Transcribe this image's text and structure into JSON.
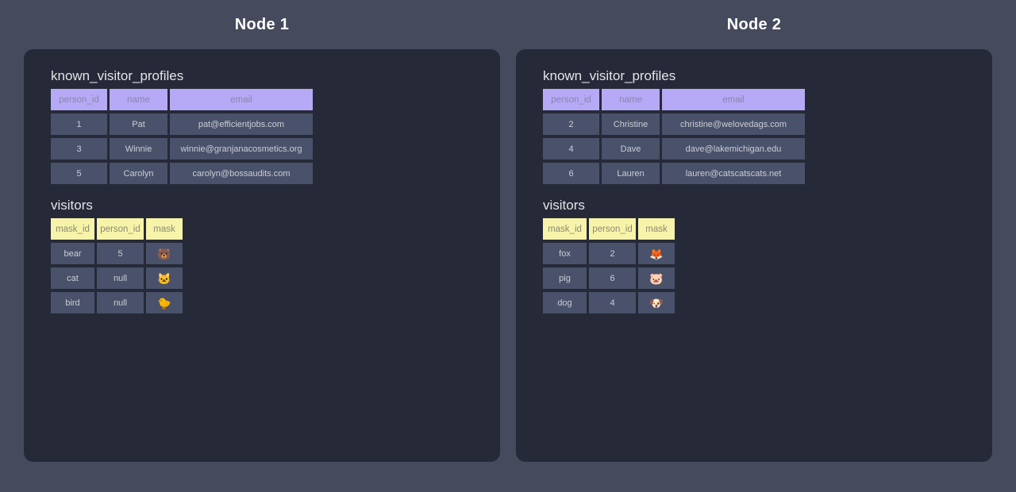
{
  "colors": {
    "page_background": "#454a5c",
    "panel_background": "#262a38",
    "profiles_header_background": "#b6a9f5",
    "profiles_header_text": "#8a86ab",
    "visitors_header_background": "#f7f3a8",
    "visitors_header_text": "#8b8b78",
    "cell_background": "#49526a",
    "cell_text": "#cbcdd6",
    "node_title_text": "#ffffff",
    "table_title_text": "#e3e4e8"
  },
  "nodes": [
    {
      "title": "Node 1",
      "tables": [
        {
          "name": "known_visitor_profiles",
          "style": "purple",
          "columns": [
            "person_id",
            "name",
            "email"
          ],
          "rows": [
            [
              "1",
              "Pat",
              "pat@efficientjobs.com"
            ],
            [
              "3",
              "Winnie",
              "winnie@granjanacosmetics.org"
            ],
            [
              "5",
              "Carolyn",
              "carolyn@bossaudits.com"
            ]
          ]
        },
        {
          "name": "visitors",
          "style": "yellow",
          "columns": [
            "mask_id",
            "person_id",
            "mask"
          ],
          "rows": [
            [
              "bear",
              "5",
              "🐻"
            ],
            [
              "cat",
              "null",
              "🐱"
            ],
            [
              "bird",
              "null",
              "🐤"
            ]
          ]
        }
      ]
    },
    {
      "title": "Node 2",
      "tables": [
        {
          "name": "known_visitor_profiles",
          "style": "purple",
          "columns": [
            "person_id",
            "name",
            "email"
          ],
          "rows": [
            [
              "2",
              "Christine",
              "christine@welovedags.com"
            ],
            [
              "4",
              "Dave",
              "dave@lakemichigan.edu"
            ],
            [
              "6",
              "Lauren",
              "lauren@catscatscats.net"
            ]
          ]
        },
        {
          "name": "visitors",
          "style": "yellow",
          "columns": [
            "mask_id",
            "person_id",
            "mask"
          ],
          "rows": [
            [
              "fox",
              "2",
              "🦊"
            ],
            [
              "pig",
              "6",
              "🐷"
            ],
            [
              "dog",
              "4",
              "🐶"
            ]
          ]
        }
      ]
    }
  ]
}
